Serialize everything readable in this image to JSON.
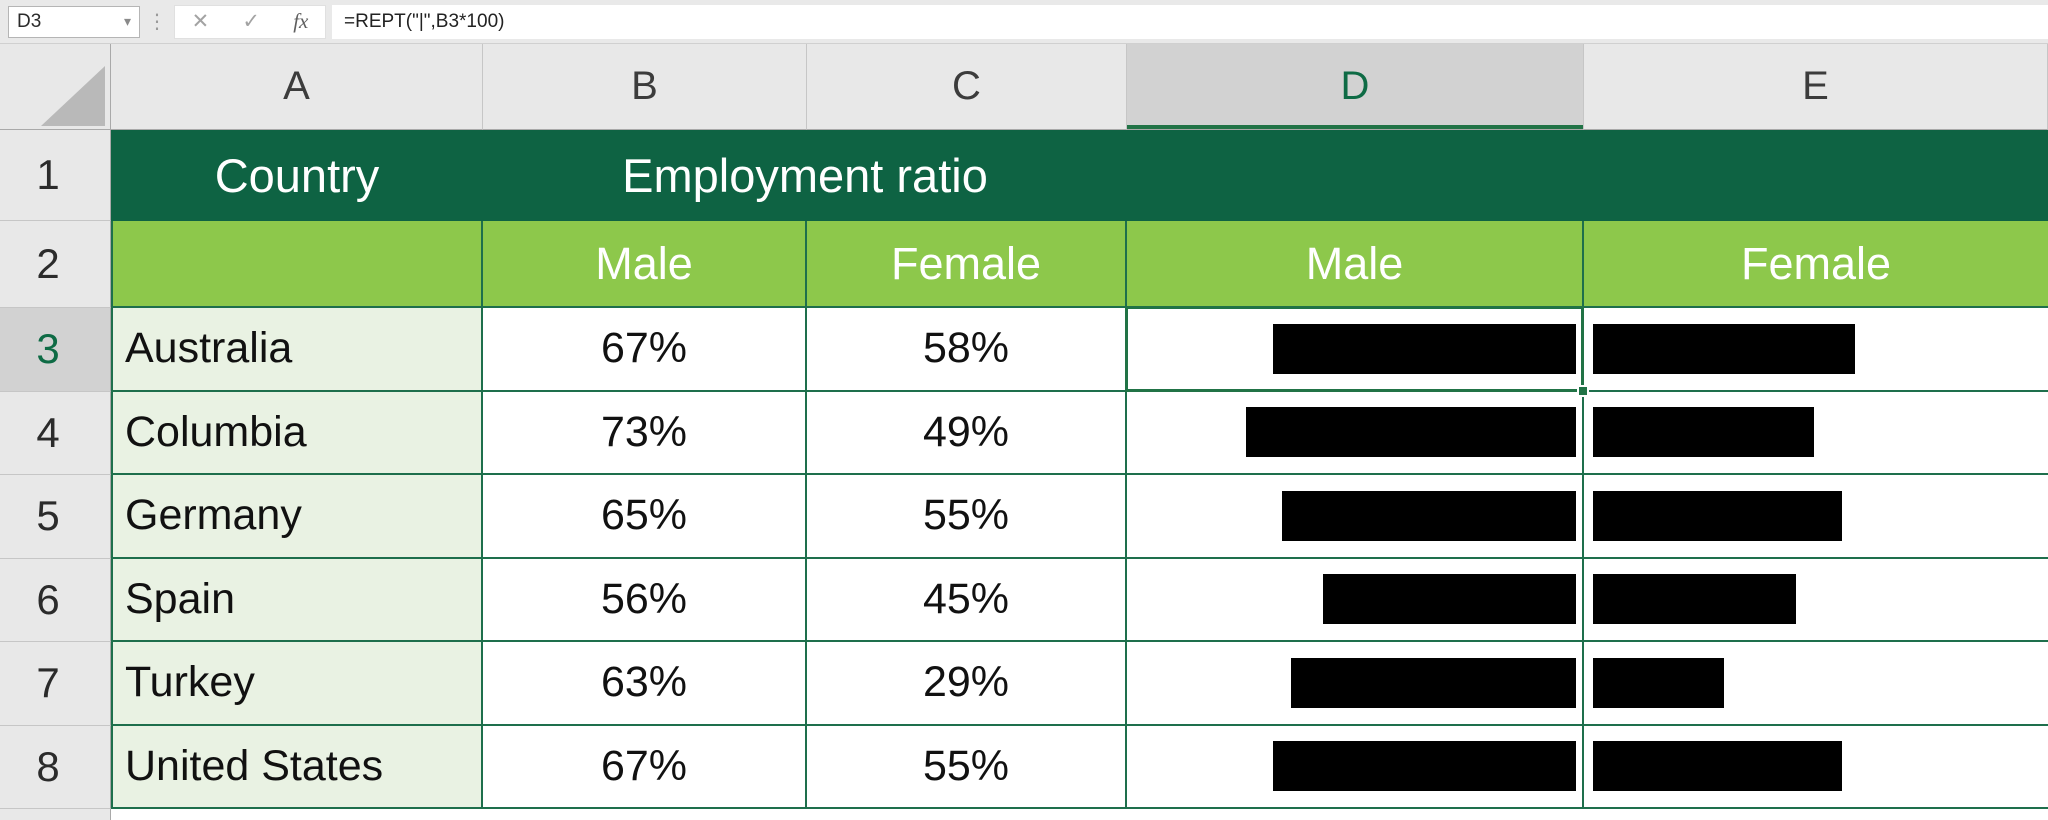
{
  "formula_bar": {
    "name_box_value": "D3",
    "cancel_label": "✕",
    "enter_label": "✓",
    "insert_function_label": "fx",
    "formula": "=REPT(\"|\",B3*100)"
  },
  "icons": {
    "name_box_dropdown": "▾",
    "separator_dots": "⋮"
  },
  "columns": [
    "A",
    "B",
    "C",
    "D",
    "E"
  ],
  "selection": {
    "cell": "D3",
    "column": "D",
    "row": "3"
  },
  "banner": {
    "country_label": "Country",
    "group_label": "Employment ratio",
    "sub_male_b": "Male",
    "sub_female_c": "Female",
    "sub_male_d": "Male",
    "sub_female_e": "Female"
  },
  "row_numbers": [
    "1",
    "2"
  ],
  "rows": [
    {
      "n": "3",
      "country": "Australia",
      "male_pct": "67%",
      "female_pct": "58%",
      "male": 67,
      "female": 58
    },
    {
      "n": "4",
      "country": "Columbia",
      "male_pct": "73%",
      "female_pct": "49%",
      "male": 73,
      "female": 49
    },
    {
      "n": "5",
      "country": "Germany",
      "male_pct": "65%",
      "female_pct": "55%",
      "male": 65,
      "female": 55
    },
    {
      "n": "6",
      "country": "Spain",
      "male_pct": "56%",
      "female_pct": "45%",
      "male": 56,
      "female": 45
    },
    {
      "n": "7",
      "country": "Turkey",
      "male_pct": "63%",
      "female_pct": "29%",
      "male": 63,
      "female": 29
    },
    {
      "n": "8",
      "country": "United States",
      "male_pct": "67%",
      "female_pct": "55%",
      "male": 67,
      "female": 55
    }
  ],
  "bar_scale": 4.52,
  "chart_data": {
    "type": "bar",
    "title": "Employment ratio",
    "categories": [
      "Australia",
      "Columbia",
      "Germany",
      "Spain",
      "Turkey",
      "United States"
    ],
    "series": [
      {
        "name": "Male",
        "values": [
          67,
          73,
          65,
          56,
          63,
          67
        ]
      },
      {
        "name": "Female",
        "values": [
          58,
          49,
          55,
          45,
          29,
          55
        ]
      }
    ],
    "units": "%",
    "xlim": [
      0,
      100
    ],
    "render_style": "in-cell REPT pipe-character bars; Male bars right-aligned in column D, Female bars left-aligned in column E"
  },
  "colors": {
    "banner_dark_green": "#0E6343",
    "banner_light_green": "#8DC84B",
    "country_column_tint": "#E9F2E3",
    "grid_border_green": "#1E6F4C",
    "selection_green": "#217346",
    "bar_black": "#000000",
    "header_gray": "#E8E8E8",
    "selected_header_gray": "#D2D2D2"
  }
}
